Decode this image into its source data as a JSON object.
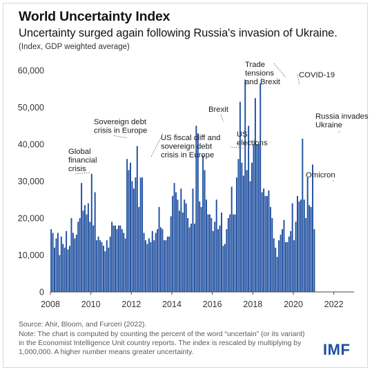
{
  "header": {
    "title": "World Uncertainty Index",
    "subtitle": "Uncertainty surged again following Russia's invasion of Ukraine.",
    "units": "(Index, GDP weighted average)"
  },
  "footer": {
    "source": "Source: Ahir, Bloom, and Furceri (2022).",
    "note": "Note: The chart is computed by counting the percent of the word “uncertain” (or its variant) in the Economist Intelligence Unit country reports. The index is rescaled by multiplying by 1,000,000. A higher number means greater uncertainty.",
    "logo": "IMF"
  },
  "colors": {
    "bar": "#1f4fa0",
    "axis": "#444444",
    "grid": "#dddddd",
    "annotation": "#1a1a1a"
  },
  "chart_data": {
    "type": "bar",
    "title": "World Uncertainty Index",
    "xlabel": "",
    "ylabel": "",
    "xlim": [
      2008,
      2023
    ],
    "ylim": [
      0,
      60000
    ],
    "grid": false,
    "legend": "none",
    "yticks": [
      0,
      10000,
      20000,
      30000,
      40000,
      50000,
      60000
    ],
    "ytick_labels": [
      "0",
      "10,000",
      "20,000",
      "30,000",
      "40,000",
      "50,000",
      "60,000"
    ],
    "xticks": [
      2008,
      2010,
      2012,
      2014,
      2016,
      2018,
      2020,
      2022
    ],
    "xtick_labels": [
      "2008",
      "2010",
      "2012",
      "2014",
      "2016",
      "2018",
      "2020",
      "2022"
    ],
    "x_start": "2008-01",
    "frequency": "monthly",
    "values": [
      17000,
      16000,
      12000,
      14500,
      16000,
      10000,
      15000,
      13000,
      12000,
      16500,
      11500,
      12500,
      20000,
      16000,
      14500,
      15500,
      19000,
      20000,
      29500,
      22000,
      23500,
      21000,
      24000,
      19000,
      32000,
      18000,
      27000,
      14000,
      15000,
      14000,
      13500,
      12500,
      11000,
      14000,
      12000,
      15000,
      19000,
      18000,
      18000,
      17000,
      18000,
      18000,
      17000,
      16000,
      14500,
      36000,
      33000,
      35000,
      30000,
      28000,
      31000,
      39500,
      23000,
      31000,
      31000,
      16000,
      14000,
      13000,
      14500,
      13500,
      16500,
      14000,
      16000,
      17000,
      23000,
      17500,
      17000,
      14000,
      14000,
      15000,
      15000,
      20500,
      26000,
      29500,
      27000,
      25000,
      22000,
      28000,
      21500,
      25000,
      24000,
      20000,
      17500,
      18500,
      28000,
      18500,
      45000,
      43000,
      24500,
      23000,
      37000,
      33000,
      25000,
      21000,
      21000,
      20000,
      16500,
      19000,
      25000,
      17000,
      18000,
      21500,
      12500,
      13000,
      17000,
      20000,
      21000,
      28500,
      21000,
      21000,
      31000,
      36000,
      51500,
      35000,
      31500,
      57500,
      33000,
      45000,
      30000,
      35000,
      40000,
      52500,
      40000,
      40000,
      56500,
      27000,
      28000,
      26000,
      26000,
      27500,
      23000,
      20000,
      14500,
      12000,
      9500,
      14000,
      15500,
      17000,
      19500,
      13500,
      13500,
      15000,
      16500,
      24000,
      14000,
      19000,
      26000,
      24500,
      25000,
      41500,
      25000,
      20000,
      31000,
      23500,
      23000,
      34500,
      17000
    ],
    "annotations": [
      {
        "text": "Global\nfinancial\ncrisis",
        "x": "2009-12"
      },
      {
        "text": "Sovereign debt\ncrisis in Europe",
        "x": "2011-10"
      },
      {
        "text": "US fiscal cliff and\nsovereign debt\ncrisis in Europe",
        "x": "2012-12"
      },
      {
        "text": "Brexit",
        "x": "2016-07"
      },
      {
        "text": "US\nelections",
        "x": "2016-11"
      },
      {
        "text": "Trade\ntensions\nand Brexit",
        "x": "2019-08"
      },
      {
        "text": "COVID-19",
        "x": "2020-04"
      },
      {
        "text": "Russia invades\nUkraine",
        "x": "2022-03"
      },
      {
        "text": "Omicron",
        "x": "2021-12"
      }
    ]
  }
}
